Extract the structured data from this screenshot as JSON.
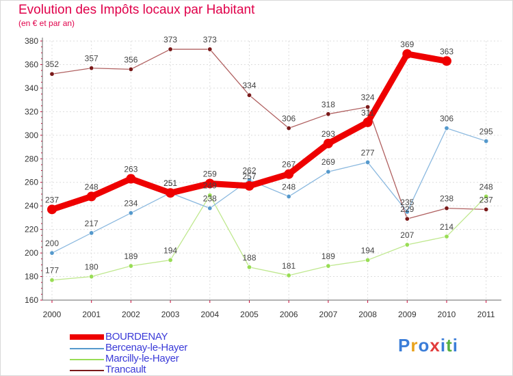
{
  "chart_data": {
    "type": "line",
    "title": "Evolution des Impôts locaux par Habitant",
    "subtitle": "(en € et par an)",
    "categories": [
      "2000",
      "2001",
      "2002",
      "2003",
      "2004",
      "2005",
      "2006",
      "2007",
      "2008",
      "2009",
      "2010",
      "2011"
    ],
    "ylim": [
      160,
      380
    ],
    "yticks": [
      "160",
      "180",
      "200",
      "220",
      "240",
      "260",
      "280",
      "300",
      "320",
      "340",
      "360",
      "380"
    ],
    "grid": true,
    "legend_position": "bottom-left",
    "series": [
      {
        "name": "Trancault",
        "color": "#7a1a1a",
        "values": [
          352,
          357,
          356,
          373,
          373,
          334,
          306,
          318,
          324,
          229,
          238,
          237
        ],
        "labels": [
          "352",
          "357",
          "356",
          "373",
          "373",
          "334",
          "306",
          "318",
          "324",
          "229",
          "238",
          "237"
        ]
      },
      {
        "name": "Marcilly-le-Hayer",
        "color": "#99dd55",
        "values": [
          177,
          180,
          189,
          194,
          249,
          188,
          181,
          189,
          194,
          207,
          214,
          248
        ],
        "labels": [
          "177",
          "180",
          "189",
          "194",
          "249",
          "188",
          "181",
          "189",
          "194",
          "207",
          "214",
          "248"
        ]
      },
      {
        "name": "Bercenay-le-Hayer",
        "color": "#5599cc",
        "values": [
          200,
          217,
          234,
          251,
          238,
          262,
          248,
          269,
          277,
          235,
          306,
          295
        ],
        "labels": [
          "200",
          "217",
          "234",
          "251",
          "238",
          "262",
          "248",
          "269",
          "277",
          "235",
          "306",
          "295"
        ]
      },
      {
        "name": "BOURDENAY",
        "color": "#ee0000",
        "values": [
          237,
          248,
          263,
          251,
          259,
          257,
          267,
          293,
          311,
          369,
          363,
          null
        ],
        "labels": [
          "237",
          "248",
          "263",
          "251",
          "259",
          "257",
          "267",
          "293",
          "311",
          "369",
          "363",
          null
        ]
      }
    ]
  },
  "legend": [
    {
      "name": "BOURDENAY",
      "color": "#ee0000"
    },
    {
      "name": "Bercenay-le-Hayer",
      "color": "#5599cc"
    },
    {
      "name": "Marcilly-le-Hayer",
      "color": "#99dd55"
    },
    {
      "name": "Trancault",
      "color": "#7a1a1a"
    }
  ],
  "logo": {
    "letters": [
      "P",
      "r",
      "o",
      "x",
      "i",
      "t",
      "i"
    ],
    "colors": [
      "#3b7dd8",
      "#e8a21c",
      "#3b7dd8",
      "#e23b3b",
      "#3b7dd8",
      "#58b041",
      "#3b7dd8"
    ]
  }
}
